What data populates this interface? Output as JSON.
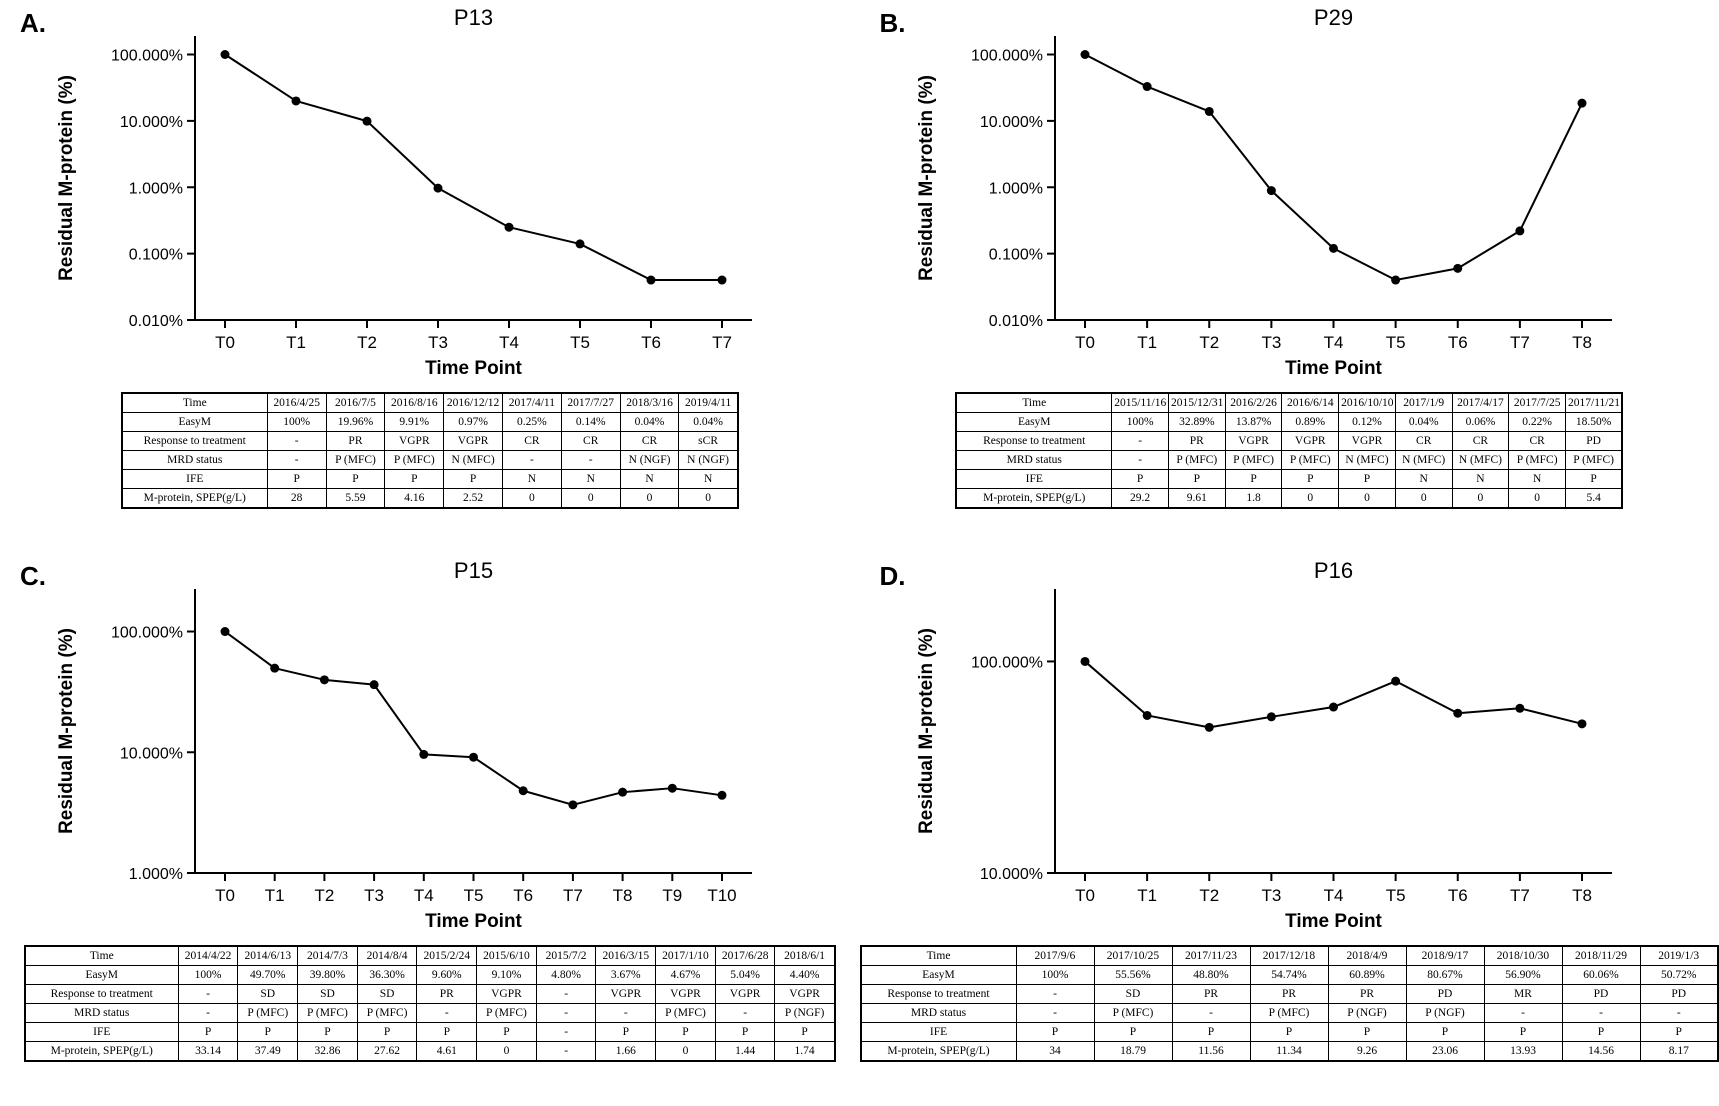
{
  "figure": {
    "background_color": "#ffffff",
    "line_color": "#000000",
    "text_color": "#000000"
  },
  "panels": [
    {
      "letter": "A."
    },
    {
      "letter": "B."
    },
    {
      "letter": "C."
    },
    {
      "letter": "D."
    }
  ],
  "chart_data": [
    {
      "panel": "A",
      "type": "line",
      "title": "P13",
      "xlabel": "Time Point",
      "ylabel": "Residual M-protein (%)",
      "categories": [
        "T0",
        "T1",
        "T2",
        "T3",
        "T4",
        "T5",
        "T6",
        "T7"
      ],
      "values": [
        100,
        19.96,
        9.91,
        0.97,
        0.25,
        0.14,
        0.04,
        0.04
      ],
      "ylog": true,
      "ylim": [
        0.01,
        190
      ],
      "ytick_values": [
        100,
        10,
        1,
        0.1,
        0.01
      ],
      "ytick_labels": [
        "100.000%",
        "10.000%",
        "1.000%",
        "0.100%",
        "0.010%"
      ],
      "legend": "none",
      "grid": false
    },
    {
      "panel": "B",
      "type": "line",
      "title": "P29",
      "xlabel": "Time Point",
      "ylabel": "Residual M-protein (%)",
      "categories": [
        "T0",
        "T1",
        "T2",
        "T3",
        "T4",
        "T5",
        "T6",
        "T7",
        "T8"
      ],
      "values": [
        100,
        32.89,
        13.87,
        0.89,
        0.12,
        0.04,
        0.06,
        0.22,
        18.5
      ],
      "ylog": true,
      "ylim": [
        0.01,
        190
      ],
      "ytick_values": [
        100,
        10,
        1,
        0.1,
        0.01
      ],
      "ytick_labels": [
        "100.000%",
        "10.000%",
        "1.000%",
        "0.100%",
        "0.010%"
      ],
      "legend": "none",
      "grid": false
    },
    {
      "panel": "C",
      "type": "line",
      "title": "P15",
      "xlabel": "Time Point",
      "ylabel": "Residual M-protein (%)",
      "categories": [
        "T0",
        "T1",
        "T2",
        "T3",
        "T4",
        "T5",
        "T6",
        "T7",
        "T8",
        "T9",
        "T10"
      ],
      "values": [
        100,
        49.7,
        39.8,
        36.3,
        9.6,
        9.1,
        4.8,
        3.67,
        4.67,
        5.04,
        4.4
      ],
      "ylog": true,
      "ylim": [
        1,
        225
      ],
      "ytick_values": [
        100,
        10,
        1
      ],
      "ytick_labels": [
        "100.000%",
        "10.000%",
        "1.000%"
      ],
      "legend": "none",
      "grid": false
    },
    {
      "panel": "D",
      "type": "line",
      "title": "P16",
      "xlabel": "Time Point",
      "ylabel": "Residual M-protein (%)",
      "categories": [
        "T0",
        "T1",
        "T2",
        "T3",
        "T4",
        "T5",
        "T6",
        "T7",
        "T8"
      ],
      "values": [
        100,
        55.56,
        48.8,
        54.74,
        60.89,
        80.67,
        56.9,
        60.06,
        50.72
      ],
      "ylog": true,
      "ylim": [
        10,
        220
      ],
      "ytick_values": [
        100,
        10
      ],
      "ytick_labels": [
        "100.000%",
        "10.000%"
      ],
      "legend": "none",
      "grid": false
    }
  ],
  "tables": [
    {
      "panel": "A",
      "rows": [
        [
          "Time",
          "2016/4/25",
          "2016/7/5",
          "2016/8/16",
          "2016/12/12",
          "2017/4/11",
          "2017/7/27",
          "2018/3/16",
          "2019/4/11"
        ],
        [
          "EasyM",
          "100%",
          "19.96%",
          "9.91%",
          "0.97%",
          "0.25%",
          "0.14%",
          "0.04%",
          "0.04%"
        ],
        [
          "Response to treatment",
          "-",
          "PR",
          "VGPR",
          "VGPR",
          "CR",
          "CR",
          "CR",
          "sCR"
        ],
        [
          "MRD status",
          "-",
          "P (MFC)",
          "P (MFC)",
          "N (MFC)",
          "-",
          "-",
          "N (NGF)",
          "N (NGF)"
        ],
        [
          "IFE",
          "P",
          "P",
          "P",
          "P",
          "N",
          "N",
          "N",
          "N"
        ],
        [
          "M-protein, SPEP(g/L)",
          "28",
          "5.59",
          "4.16",
          "2.52",
          "0",
          "0",
          "0",
          "0"
        ]
      ]
    },
    {
      "panel": "B",
      "rows": [
        [
          "Time",
          "2015/11/16",
          "2015/12/31",
          "2016/2/26",
          "2016/6/14",
          "2016/10/10",
          "2017/1/9",
          "2017/4/17",
          "2017/7/25",
          "2017/11/21"
        ],
        [
          "EasyM",
          "100%",
          "32.89%",
          "13.87%",
          "0.89%",
          "0.12%",
          "0.04%",
          "0.06%",
          "0.22%",
          "18.50%"
        ],
        [
          "Response to treatment",
          "-",
          "PR",
          "VGPR",
          "VGPR",
          "VGPR",
          "CR",
          "CR",
          "CR",
          "PD"
        ],
        [
          "MRD status",
          "-",
          "P (MFC)",
          "P (MFC)",
          "P (MFC)",
          "N (MFC)",
          "N (MFC)",
          "N (MFC)",
          "P (MFC)",
          "P (MFC)"
        ],
        [
          "IFE",
          "P",
          "P",
          "P",
          "P",
          "P",
          "N",
          "N",
          "N",
          "P"
        ],
        [
          "M-protein, SPEP(g/L)",
          "29.2",
          "9.61",
          "1.8",
          "0",
          "0",
          "0",
          "0",
          "0",
          "5.4"
        ]
      ]
    },
    {
      "panel": "C",
      "rows": [
        [
          "Time",
          "2014/4/22",
          "2014/6/13",
          "2014/7/3",
          "2014/8/4",
          "2015/2/24",
          "2015/6/10",
          "2015/7/2",
          "2016/3/15",
          "2017/1/10",
          "2017/6/28",
          "2018/6/1"
        ],
        [
          "EasyM",
          "100%",
          "49.70%",
          "39.80%",
          "36.30%",
          "9.60%",
          "9.10%",
          "4.80%",
          "3.67%",
          "4.67%",
          "5.04%",
          "4.40%"
        ],
        [
          "Response to treatment",
          "-",
          "SD",
          "SD",
          "SD",
          "PR",
          "VGPR",
          "-",
          "VGPR",
          "VGPR",
          "VGPR",
          "VGPR"
        ],
        [
          "MRD status",
          "-",
          "P (MFC)",
          "P (MFC)",
          "P (MFC)",
          "-",
          "P (MFC)",
          "-",
          "-",
          "P (MFC)",
          "-",
          "P (NGF)"
        ],
        [
          "IFE",
          "P",
          "P",
          "P",
          "P",
          "P",
          "P",
          "-",
          "P",
          "P",
          "P",
          "P"
        ],
        [
          "M-protein, SPEP(g/L)",
          "33.14",
          "37.49",
          "32.86",
          "27.62",
          "4.61",
          "0",
          "-",
          "1.66",
          "0",
          "1.44",
          "1.74"
        ]
      ]
    },
    {
      "panel": "D",
      "rows": [
        [
          "Time",
          "2017/9/6",
          "2017/10/25",
          "2017/11/23",
          "2017/12/18",
          "2018/4/9",
          "2018/9/17",
          "2018/10/30",
          "2018/11/29",
          "2019/1/3"
        ],
        [
          "EasyM",
          "100%",
          "55.56%",
          "48.80%",
          "54.74%",
          "60.89%",
          "80.67%",
          "56.90%",
          "60.06%",
          "50.72%"
        ],
        [
          "Response to treatment",
          "-",
          "SD",
          "PR",
          "PR",
          "PR",
          "PD",
          "MR",
          "PD",
          "PD"
        ],
        [
          "MRD status",
          "-",
          "P (MFC)",
          "-",
          "P (MFC)",
          "P (NGF)",
          "P (NGF)",
          "-",
          "-",
          "-"
        ],
        [
          "IFE",
          "P",
          "P",
          "P",
          "P",
          "P",
          "P",
          "P",
          "P",
          "P"
        ],
        [
          "M-protein, SPEP(g/L)",
          "34",
          "18.79",
          "11.56",
          "11.34",
          "9.26",
          "23.06",
          "13.93",
          "14.56",
          "8.17"
        ]
      ]
    }
  ]
}
